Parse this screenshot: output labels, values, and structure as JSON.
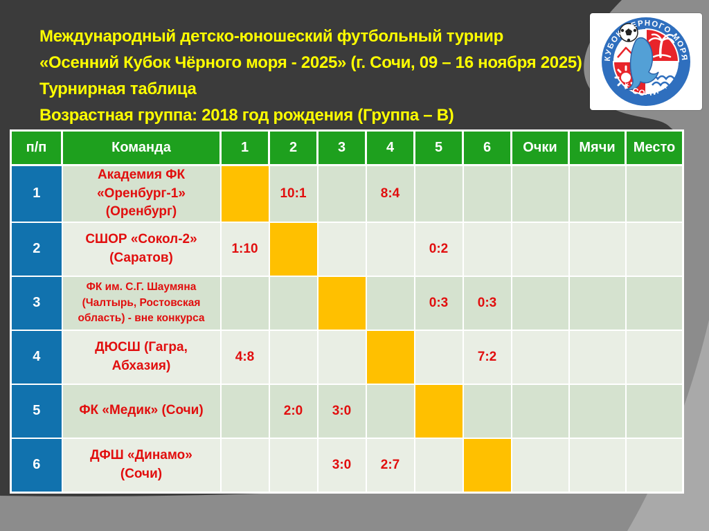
{
  "slide": {
    "title_lines": [
      "Международный детско-юношеский футбольный турнир",
      "«Осенний Кубок Чёрного моря - 2025» (г. Сочи, 09 – 16 ноября 2025)",
      "Турнирная таблица",
      "Возрастная группа: 2018 год рождения (Группа – В)"
    ],
    "colors": {
      "bg_dark": "#3b3b3b",
      "bg_mid": "#8c8c8c",
      "bg_light": "#a9a9a9",
      "title_yellow": "#ffff00"
    }
  },
  "logo": {
    "ring_text_top": "КУБОК ЧЕРНОГО МОРЯ",
    "ring_text_bottom": "✶ СОЧИ ✶",
    "colors": {
      "ring_blue": "#2f6fbe",
      "emblem_red": "#e8242a",
      "dolphin_blue": "#53a0d6"
    }
  },
  "table": {
    "headers": [
      "п/п",
      "Команда",
      "1",
      "2",
      "3",
      "4",
      "5",
      "6",
      "Очки",
      "Мячи",
      "Место"
    ],
    "rows": [
      {
        "num": "1",
        "team": "Академия ФК\n«Оренбург-1»\n(Оренбург)",
        "small": false,
        "results": [
          "",
          "10:1",
          "",
          "8:4",
          "",
          ""
        ],
        "self_index": 0,
        "points": "",
        "goals": "",
        "place": ""
      },
      {
        "num": "2",
        "team": "СШОР «Сокол-2»\n(Саратов)",
        "small": false,
        "results": [
          "1:10",
          "",
          "",
          "",
          "0:2",
          ""
        ],
        "self_index": 1,
        "points": "",
        "goals": "",
        "place": ""
      },
      {
        "num": "3",
        "team": "ФК им. С.Г. Шаумяна\n(Чалтырь, Ростовская\nобласть) - вне конкурса",
        "small": true,
        "results": [
          "",
          "",
          "",
          "",
          "0:3",
          "0:3"
        ],
        "self_index": 2,
        "points": "",
        "goals": "",
        "place": ""
      },
      {
        "num": "4",
        "team": "ДЮСШ (Гагра,\nАбхазия)",
        "small": false,
        "results": [
          "4:8",
          "",
          "",
          "",
          "",
          "7:2"
        ],
        "self_index": 3,
        "points": "",
        "goals": "",
        "place": ""
      },
      {
        "num": "5",
        "team": "ФК «Медик» (Сочи)",
        "small": false,
        "results": [
          "",
          "2:0",
          "3:0",
          "",
          "",
          ""
        ],
        "self_index": 4,
        "points": "",
        "goals": "",
        "place": ""
      },
      {
        "num": "6",
        "team": "ДФШ «Динамо»\n(Сочи)",
        "small": false,
        "results": [
          "",
          "",
          "3:0",
          "2:7",
          "",
          ""
        ],
        "self_index": 5,
        "points": "",
        "goals": "",
        "place": ""
      }
    ],
    "colors": {
      "header_green": "#1ea01e",
      "row_odd": "#d5e2cf",
      "row_even": "#e9eee4",
      "diagonal_orange": "#ffc000",
      "num_blue": "#1172ae",
      "score_red": "#e10e0e"
    }
  }
}
